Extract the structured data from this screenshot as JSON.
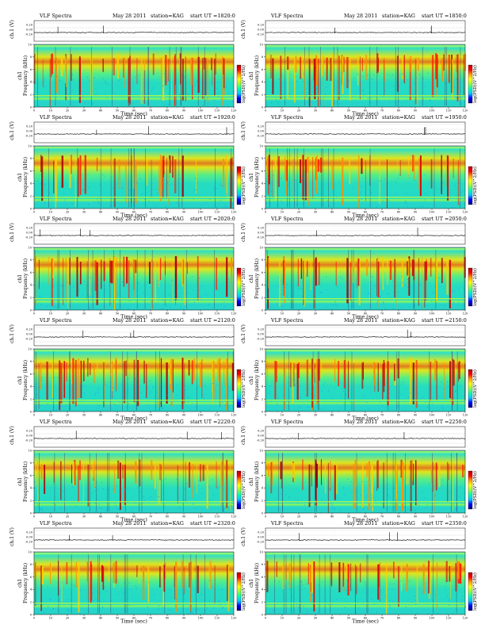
{
  "figure": {
    "title": "VLF Spectra",
    "date": "May 28 2011",
    "station_label": "station=KAG",
    "start_prefix": "start  UT  ="
  },
  "chart_data": [
    {
      "type": "heatmap",
      "panel": 1,
      "start_ut": "1820:0",
      "title": "VLF Spectra",
      "xlabel": "Time (sec)",
      "ylabel": "Frequency (kHz)",
      "channel_label": "ch1",
      "top_ylabel": "ch.1 (V)",
      "colorbar_label": "log(PSD)(V^2/Hz)",
      "xlim": [
        0,
        120
      ],
      "ylim": [
        0,
        10
      ],
      "xticks": [
        0,
        10,
        20,
        30,
        40,
        50,
        60,
        70,
        80,
        90,
        100,
        110,
        120
      ],
      "yticks": [
        0,
        2,
        4,
        6,
        8,
        10
      ],
      "top_yticks": [
        "0.20",
        "0.00",
        "-0.20"
      ],
      "colorscale": [
        "#00007a",
        "#0000ff",
        "#00c8ff",
        "#00ffb4",
        "#8cff3c",
        "#ffff00",
        "#ffa000",
        "#ff0000",
        "#b40000"
      ]
    },
    {
      "type": "heatmap",
      "panel": 2,
      "start_ut": "1850:0",
      "title": "VLF Spectra",
      "xlabel": "Time (sec)",
      "ylabel": "Frequency (kHz)",
      "channel_label": "ch1",
      "top_ylabel": "ch.1 (V)",
      "colorbar_label": "log(PSD)(V^2/Hz)",
      "xlim": [
        0,
        120
      ],
      "ylim": [
        0,
        10
      ],
      "xticks": [
        0,
        10,
        20,
        30,
        40,
        50,
        60,
        70,
        80,
        90,
        100,
        110,
        120
      ],
      "yticks": [
        0,
        2,
        4,
        6,
        8,
        10
      ],
      "top_yticks": [
        "0.20",
        "0.00",
        "-0.20"
      ],
      "colorscale": [
        "#00007a",
        "#0000ff",
        "#00c8ff",
        "#00ffb4",
        "#8cff3c",
        "#ffff00",
        "#ffa000",
        "#ff0000",
        "#b40000"
      ]
    },
    {
      "type": "heatmap",
      "panel": 3,
      "start_ut": "1920:0",
      "title": "VLF Spectra",
      "xlabel": "Time (sec)",
      "ylabel": "Frequency (kHz)",
      "channel_label": "ch1",
      "top_ylabel": "ch.1 (V)",
      "colorbar_label": "log(PSD)(V^2/Hz)",
      "xlim": [
        0,
        120
      ],
      "ylim": [
        0,
        10
      ],
      "xticks": [
        0,
        10,
        20,
        30,
        40,
        50,
        60,
        70,
        80,
        90,
        100,
        110,
        120
      ],
      "yticks": [
        0,
        2,
        4,
        6,
        8,
        10
      ],
      "top_yticks": [
        "0.20",
        "0.00",
        "-0.20"
      ],
      "colorscale": [
        "#00007a",
        "#0000ff",
        "#00c8ff",
        "#00ffb4",
        "#8cff3c",
        "#ffff00",
        "#ffa000",
        "#ff0000",
        "#b40000"
      ]
    },
    {
      "type": "heatmap",
      "panel": 4,
      "start_ut": "1950:0",
      "title": "VLF Spectra",
      "xlabel": "Time (sec)",
      "ylabel": "Frequency (kHz)",
      "channel_label": "ch1",
      "top_ylabel": "ch.1 (V)",
      "colorbar_label": "log(PSD)(V^2/Hz)",
      "xlim": [
        0,
        120
      ],
      "ylim": [
        0,
        10
      ],
      "xticks": [
        0,
        10,
        20,
        30,
        40,
        50,
        60,
        70,
        80,
        90,
        100,
        110,
        120
      ],
      "yticks": [
        0,
        2,
        4,
        6,
        8,
        10
      ],
      "top_yticks": [
        "0.20",
        "0.00",
        "-0.20"
      ],
      "colorscale": [
        "#00007a",
        "#0000ff",
        "#00c8ff",
        "#00ffb4",
        "#8cff3c",
        "#ffff00",
        "#ffa000",
        "#ff0000",
        "#b40000"
      ]
    },
    {
      "type": "heatmap",
      "panel": 5,
      "start_ut": "2020:0",
      "title": "VLF Spectra",
      "xlabel": "Time (sec)",
      "ylabel": "Frequency (kHz)",
      "channel_label": "ch1",
      "top_ylabel": "ch.1 (V)",
      "colorbar_label": "log(PSD)(V^2/Hz)",
      "xlim": [
        0,
        120
      ],
      "ylim": [
        0,
        10
      ],
      "xticks": [
        0,
        10,
        20,
        30,
        40,
        50,
        60,
        70,
        80,
        90,
        100,
        110,
        120
      ],
      "yticks": [
        0,
        2,
        4,
        6,
        8,
        10
      ],
      "top_yticks": [
        "0.20",
        "0.00",
        "-0.20"
      ],
      "colorscale": [
        "#00007a",
        "#0000ff",
        "#00c8ff",
        "#00ffb4",
        "#8cff3c",
        "#ffff00",
        "#ffa000",
        "#ff0000",
        "#b40000"
      ]
    },
    {
      "type": "heatmap",
      "panel": 6,
      "start_ut": "2050:0",
      "title": "VLF Spectra",
      "xlabel": "Time (sec)",
      "ylabel": "Frequency (kHz)",
      "channel_label": "ch1",
      "top_ylabel": "ch.1 (V)",
      "colorbar_label": "log(PSD)(V^2/Hz)",
      "xlim": [
        0,
        120
      ],
      "ylim": [
        0,
        10
      ],
      "xticks": [
        0,
        10,
        20,
        30,
        40,
        50,
        60,
        70,
        80,
        90,
        100,
        110,
        120
      ],
      "yticks": [
        0,
        2,
        4,
        6,
        8,
        10
      ],
      "top_yticks": [
        "0.20",
        "0.00",
        "-0.20"
      ],
      "colorscale": [
        "#00007a",
        "#0000ff",
        "#00c8ff",
        "#00ffb4",
        "#8cff3c",
        "#ffff00",
        "#ffa000",
        "#ff0000",
        "#b40000"
      ]
    },
    {
      "type": "heatmap",
      "panel": 7,
      "start_ut": "2120:0",
      "title": "VLF Spectra",
      "xlabel": "Time (sec)",
      "ylabel": "Frequency (kHz)",
      "channel_label": "ch1",
      "top_ylabel": "ch.1 (V)",
      "colorbar_label": "log(PSD)(V^2/Hz)",
      "xlim": [
        0,
        120
      ],
      "ylim": [
        0,
        10
      ],
      "xticks": [
        0,
        10,
        20,
        30,
        40,
        50,
        60,
        70,
        80,
        90,
        100,
        110,
        120
      ],
      "yticks": [
        0,
        2,
        4,
        6,
        8,
        10
      ],
      "top_yticks": [
        "0.20",
        "0.00",
        "-0.20"
      ],
      "colorscale": [
        "#00007a",
        "#0000ff",
        "#00c8ff",
        "#00ffb4",
        "#8cff3c",
        "#ffff00",
        "#ffa000",
        "#ff0000",
        "#b40000"
      ]
    },
    {
      "type": "heatmap",
      "panel": 8,
      "start_ut": "2150:0",
      "title": "VLF Spectra",
      "xlabel": "Time (sec)",
      "ylabel": "Frequency (kHz)",
      "channel_label": "ch1",
      "top_ylabel": "ch.1 (V)",
      "colorbar_label": "log(PSD)(V^2/Hz)",
      "xlim": [
        0,
        120
      ],
      "ylim": [
        0,
        10
      ],
      "xticks": [
        0,
        10,
        20,
        30,
        40,
        50,
        60,
        70,
        80,
        90,
        100,
        110,
        120
      ],
      "yticks": [
        0,
        2,
        4,
        6,
        8,
        10
      ],
      "top_yticks": [
        "0.20",
        "0.00",
        "-0.20"
      ],
      "colorscale": [
        "#00007a",
        "#0000ff",
        "#00c8ff",
        "#00ffb4",
        "#8cff3c",
        "#ffff00",
        "#ffa000",
        "#ff0000",
        "#b40000"
      ]
    },
    {
      "type": "heatmap",
      "panel": 9,
      "start_ut": "2220:0",
      "title": "VLF Spectra",
      "xlabel": "Time (sec)",
      "ylabel": "Frequency (kHz)",
      "channel_label": "ch1",
      "top_ylabel": "ch.1 (V)",
      "colorbar_label": "log(PSD)(V^2/Hz)",
      "xlim": [
        0,
        120
      ],
      "ylim": [
        0,
        10
      ],
      "xticks": [
        0,
        10,
        20,
        30,
        40,
        50,
        60,
        70,
        80,
        90,
        100,
        110,
        120
      ],
      "yticks": [
        0,
        2,
        4,
        6,
        8,
        10
      ],
      "top_yticks": [
        "0.20",
        "0.00",
        "-0.20"
      ],
      "colorscale": [
        "#00007a",
        "#0000ff",
        "#00c8ff",
        "#00ffb4",
        "#8cff3c",
        "#ffff00",
        "#ffa000",
        "#ff0000",
        "#b40000"
      ]
    },
    {
      "type": "heatmap",
      "panel": 10,
      "start_ut": "2250:0",
      "title": "VLF Spectra",
      "xlabel": "Time (sec)",
      "ylabel": "Frequency (kHz)",
      "channel_label": "ch1",
      "top_ylabel": "ch.1 (V)",
      "colorbar_label": "log(PSD)(V^2/Hz)",
      "xlim": [
        0,
        120
      ],
      "ylim": [
        0,
        10
      ],
      "xticks": [
        0,
        10,
        20,
        30,
        40,
        50,
        60,
        70,
        80,
        90,
        100,
        110,
        120
      ],
      "yticks": [
        0,
        2,
        4,
        6,
        8,
        10
      ],
      "top_yticks": [
        "0.20",
        "0.00",
        "-0.20"
      ],
      "colorscale": [
        "#00007a",
        "#0000ff",
        "#00c8ff",
        "#00ffb4",
        "#8cff3c",
        "#ffff00",
        "#ffa000",
        "#ff0000",
        "#b40000"
      ]
    },
    {
      "type": "heatmap",
      "panel": 11,
      "start_ut": "2320:0",
      "title": "VLF Spectra",
      "xlabel": "Time (sec)",
      "ylabel": "Frequency (kHz)",
      "channel_label": "ch1",
      "top_ylabel": "ch.1 (V)",
      "colorbar_label": "log(PSD)(V^2/Hz)",
      "xlim": [
        0,
        120
      ],
      "ylim": [
        0,
        10
      ],
      "xticks": [
        0,
        10,
        20,
        30,
        40,
        50,
        60,
        70,
        80,
        90,
        100,
        110,
        120
      ],
      "yticks": [
        0,
        2,
        4,
        6,
        8,
        10
      ],
      "top_yticks": [
        "0.20",
        "0.00",
        "-0.20"
      ],
      "colorscale": [
        "#00007a",
        "#0000ff",
        "#00c8ff",
        "#00ffb4",
        "#8cff3c",
        "#ffff00",
        "#ffa000",
        "#ff0000",
        "#b40000"
      ]
    },
    {
      "type": "heatmap",
      "panel": 12,
      "start_ut": "2350:0",
      "title": "VLF Spectra",
      "xlabel": "Time (sec)",
      "ylabel": "Frequency (kHz)",
      "channel_label": "ch1",
      "top_ylabel": "ch.1 (V)",
      "colorbar_label": "log(PSD)(V^2/Hz)",
      "xlim": [
        0,
        120
      ],
      "ylim": [
        0,
        10
      ],
      "xticks": [
        0,
        10,
        20,
        30,
        40,
        50,
        60,
        70,
        80,
        90,
        100,
        110,
        120
      ],
      "yticks": [
        0,
        2,
        4,
        6,
        8,
        10
      ],
      "top_yticks": [
        "0.20",
        "0.00",
        "-0.20"
      ],
      "colorscale": [
        "#00007a",
        "#0000ff",
        "#00c8ff",
        "#00ffb4",
        "#8cff3c",
        "#ffff00",
        "#ffa000",
        "#ff0000",
        "#b40000"
      ]
    }
  ]
}
